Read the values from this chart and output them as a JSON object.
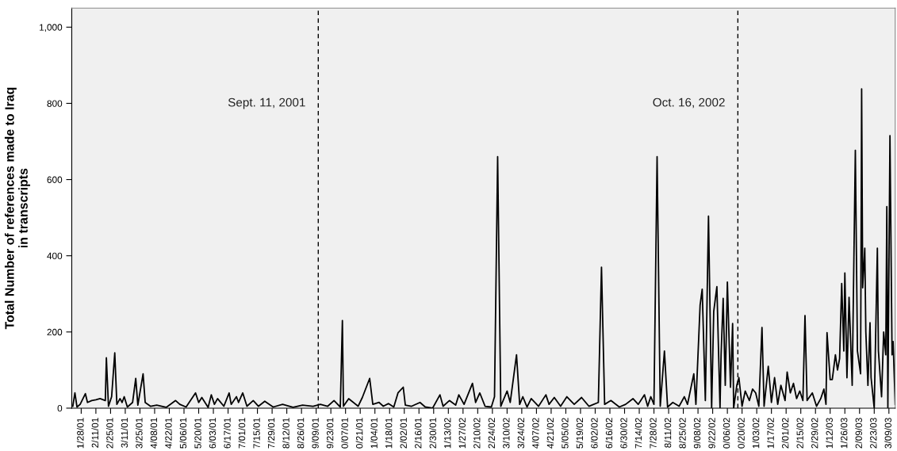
{
  "chart_data": {
    "type": "line",
    "ylabel": "Total Number of references made to Iraq\nin transcripts",
    "x": [
      "2001-01-20",
      "2001-01-22",
      "2001-01-24",
      "2001-01-27",
      "2001-02-01",
      "2001-02-03",
      "2001-02-07",
      "2001-02-11",
      "2001-02-15",
      "2001-02-20",
      "2001-02-21",
      "2001-02-23",
      "2001-02-26",
      "2001-03-01",
      "2001-03-03",
      "2001-03-06",
      "2001-03-08",
      "2001-03-10",
      "2001-03-13",
      "2001-03-18",
      "2001-03-21",
      "2001-03-23",
      "2001-03-28",
      "2001-03-30",
      "2001-04-04",
      "2001-04-10",
      "2001-04-19",
      "2001-04-28",
      "2001-05-02",
      "2001-05-08",
      "2001-05-17",
      "2001-05-20",
      "2001-05-23",
      "2001-05-29",
      "2001-06-01",
      "2001-06-04",
      "2001-06-07",
      "2001-06-13",
      "2001-06-18",
      "2001-06-20",
      "2001-06-25",
      "2001-06-27",
      "2001-07-01",
      "2001-07-05",
      "2001-07-11",
      "2001-07-16",
      "2001-07-22",
      "2001-07-30",
      "2001-08-08",
      "2001-08-18",
      "2001-08-27",
      "2001-09-06",
      "2001-09-13",
      "2001-09-20",
      "2001-09-26",
      "2001-10-02",
      "2001-10-04",
      "2001-10-05",
      "2001-10-10",
      "2001-10-19",
      "2001-10-23",
      "2001-10-30",
      "2001-11-02",
      "2001-11-08",
      "2001-11-12",
      "2001-11-17",
      "2001-11-22",
      "2001-11-26",
      "2001-12-01",
      "2001-12-03",
      "2001-12-09",
      "2001-12-17",
      "2001-12-22",
      "2001-12-29",
      "2002-01-05",
      "2002-01-08",
      "2002-01-14",
      "2002-01-20",
      "2002-01-23",
      "2002-01-28",
      "2002-02-05",
      "2002-02-08",
      "2002-02-12",
      "2002-02-17",
      "2002-02-23",
      "2002-02-26",
      "2002-03-01",
      "2002-03-04",
      "2002-03-10",
      "2002-03-13",
      "2002-03-19",
      "2002-03-22",
      "2002-03-25",
      "2002-03-29",
      "2002-04-02",
      "2002-04-09",
      "2002-04-16",
      "2002-04-19",
      "2002-04-24",
      "2002-04-30",
      "2002-05-06",
      "2002-05-13",
      "2002-05-20",
      "2002-05-27",
      "2002-06-05",
      "2002-06-08",
      "2002-06-11",
      "2002-06-17",
      "2002-06-25",
      "2002-07-01",
      "2002-07-08",
      "2002-07-13",
      "2002-07-19",
      "2002-07-22",
      "2002-07-25",
      "2002-07-28",
      "2002-07-31",
      "2002-08-03",
      "2002-08-07",
      "2002-08-10",
      "2002-08-15",
      "2002-08-21",
      "2002-08-26",
      "2002-08-29",
      "2002-09-04",
      "2002-09-06",
      "2002-09-10",
      "2002-09-12",
      "2002-09-15",
      "2002-09-18",
      "2002-09-21",
      "2002-09-23",
      "2002-09-26",
      "2002-09-29",
      "2002-09-30",
      "2002-10-02",
      "2002-10-04",
      "2002-10-06",
      "2002-10-09",
      "2002-10-11",
      "2002-10-12",
      "2002-10-15",
      "2002-10-17",
      "2002-10-20",
      "2002-10-23",
      "2002-10-27",
      "2002-10-30",
      "2002-11-02",
      "2002-11-05",
      "2002-11-08",
      "2002-11-10",
      "2002-11-14",
      "2002-11-17",
      "2002-11-20",
      "2002-11-23",
      "2002-11-26",
      "2002-11-30",
      "2002-12-02",
      "2002-12-05",
      "2002-12-08",
      "2002-12-11",
      "2002-12-14",
      "2002-12-17",
      "2002-12-19",
      "2002-12-21",
      "2002-12-26",
      "2002-12-30",
      "2003-01-03",
      "2003-01-06",
      "2003-01-08",
      "2003-01-09",
      "2003-01-12",
      "2003-01-14",
      "2003-01-17",
      "2003-01-19",
      "2003-01-21",
      "2003-01-23",
      "2003-01-25",
      "2003-01-26",
      "2003-01-28",
      "2003-01-30",
      "2003-02-02",
      "2003-02-05",
      "2003-02-07",
      "2003-02-10",
      "2003-02-11",
      "2003-02-12",
      "2003-02-14",
      "2003-02-15",
      "2003-02-17",
      "2003-02-19",
      "2003-02-20",
      "2003-02-23",
      "2003-02-24",
      "2003-02-26",
      "2003-02-27",
      "2003-03-02",
      "2003-03-04",
      "2003-03-06",
      "2003-03-07",
      "2003-03-08",
      "2003-03-10",
      "2003-03-12",
      "2003-03-13",
      "2003-03-15"
    ],
    "series": [
      {
        "color": "#000000",
        "values": [
          5,
          40,
          3,
          10,
          38,
          15,
          20,
          22,
          25,
          20,
          132,
          5,
          30,
          145,
          10,
          25,
          15,
          30,
          3,
          15,
          78,
          8,
          90,
          15,
          5,
          8,
          2,
          20,
          10,
          3,
          40,
          15,
          28,
          2,
          35,
          10,
          25,
          5,
          40,
          10,
          30,
          15,
          40,
          5,
          20,
          5,
          18,
          3,
          10,
          2,
          8,
          5,
          10,
          5,
          20,
          3,
          230,
          5,
          25,
          5,
          28,
          78,
          10,
          15,
          5,
          12,
          3,
          40,
          55,
          8,
          5,
          15,
          3,
          0,
          35,
          5,
          20,
          8,
          35,
          10,
          65,
          15,
          40,
          5,
          3,
          30,
          660,
          5,
          45,
          15,
          140,
          10,
          30,
          3,
          25,
          5,
          35,
          10,
          28,
          5,
          30,
          10,
          28,
          5,
          15,
          370,
          10,
          20,
          3,
          10,
          25,
          10,
          35,
          5,
          30,
          10,
          660,
          5,
          150,
          3,
          15,
          5,
          30,
          10,
          90,
          10,
          270,
          312,
          20,
          504,
          0,
          254,
          319,
          0,
          140,
          288,
          60,
          331,
          55,
          222,
          0,
          60,
          80,
          5,
          45,
          20,
          50,
          40,
          5,
          212,
          5,
          110,
          15,
          80,
          10,
          60,
          20,
          95,
          40,
          65,
          25,
          45,
          20,
          243,
          20,
          40,
          5,
          25,
          50,
          10,
          198,
          75,
          75,
          140,
          100,
          130,
          327,
          150,
          355,
          80,
          291,
          60,
          677,
          150,
          90,
          838,
          316,
          420,
          200,
          60,
          224,
          80,
          0,
          140,
          420,
          150,
          30,
          200,
          140,
          529,
          0,
          715,
          140,
          175,
          10
        ]
      }
    ],
    "xlim": [
      "2001-01-19",
      "2003-03-15"
    ],
    "xticks": [
      {
        "value": "2001-01-28",
        "label": "1/28/01"
      },
      {
        "value": "2001-02-11",
        "label": "2/11/01"
      },
      {
        "value": "2001-02-25",
        "label": "2/25/01"
      },
      {
        "value": "2001-03-11",
        "label": "3/11/01"
      },
      {
        "value": "2001-03-25",
        "label": "3/25/01"
      },
      {
        "value": "2001-04-08",
        "label": "4/08/01"
      },
      {
        "value": "2001-04-22",
        "label": "4/22/01"
      },
      {
        "value": "2001-05-06",
        "label": "5/06/01"
      },
      {
        "value": "2001-05-20",
        "label": "5/20/01"
      },
      {
        "value": "2001-06-03",
        "label": "6/03/01"
      },
      {
        "value": "2001-06-17",
        "label": "6/17/01"
      },
      {
        "value": "2001-07-01",
        "label": "7/01/01"
      },
      {
        "value": "2001-07-15",
        "label": "7/15/01"
      },
      {
        "value": "2001-07-29",
        "label": "7/29/01"
      },
      {
        "value": "2001-08-12",
        "label": "8/12/01"
      },
      {
        "value": "2001-08-26",
        "label": "8/26/01"
      },
      {
        "value": "2001-09-09",
        "label": "9/09/01"
      },
      {
        "value": "2001-09-23",
        "label": "9/23/01"
      },
      {
        "value": "2001-10-07",
        "label": "0/07/01"
      },
      {
        "value": "2001-10-21",
        "label": "0/21/01"
      },
      {
        "value": "2001-11-04",
        "label": "1/04/01"
      },
      {
        "value": "2001-11-18",
        "label": "1/18/01"
      },
      {
        "value": "2001-12-02",
        "label": "2/02/01"
      },
      {
        "value": "2001-12-16",
        "label": "2/16/01"
      },
      {
        "value": "2001-12-30",
        "label": "2/30/01"
      },
      {
        "value": "2002-01-13",
        "label": "1/13/02"
      },
      {
        "value": "2002-01-27",
        "label": "1/27/02"
      },
      {
        "value": "2002-02-10",
        "label": "2/10/02"
      },
      {
        "value": "2002-02-24",
        "label": "2/24/02"
      },
      {
        "value": "2002-03-10",
        "label": "3/10/02"
      },
      {
        "value": "2002-03-24",
        "label": "3/24/02"
      },
      {
        "value": "2002-04-07",
        "label": "4/07/02"
      },
      {
        "value": "2002-04-21",
        "label": "4/21/02"
      },
      {
        "value": "2002-05-05",
        "label": "5/05/02"
      },
      {
        "value": "2002-05-19",
        "label": "5/19/02"
      },
      {
        "value": "2002-06-02",
        "label": "6/02/02"
      },
      {
        "value": "2002-06-16",
        "label": "6/16/02"
      },
      {
        "value": "2002-06-30",
        "label": "6/30/02"
      },
      {
        "value": "2002-07-14",
        "label": "7/14/02"
      },
      {
        "value": "2002-07-28",
        "label": "7/28/02"
      },
      {
        "value": "2002-08-11",
        "label": "8/11/02"
      },
      {
        "value": "2002-08-25",
        "label": "8/25/02"
      },
      {
        "value": "2002-09-08",
        "label": "9/08/02"
      },
      {
        "value": "2002-09-22",
        "label": "9/22/02"
      },
      {
        "value": "2002-10-06",
        "label": "0/06/02"
      },
      {
        "value": "2002-10-20",
        "label": "0/20/02"
      },
      {
        "value": "2002-11-03",
        "label": "1/03/02"
      },
      {
        "value": "2002-11-17",
        "label": "1/17/02"
      },
      {
        "value": "2002-12-01",
        "label": "2/01/02"
      },
      {
        "value": "2002-12-15",
        "label": "2/15/02"
      },
      {
        "value": "2002-12-29",
        "label": "2/29/02"
      },
      {
        "value": "2003-01-12",
        "label": "1/12/03"
      },
      {
        "value": "2003-01-26",
        "label": "1/26/03"
      },
      {
        "value": "2003-02-09",
        "label": "2/09/03"
      },
      {
        "value": "2003-02-23",
        "label": "2/23/03"
      },
      {
        "value": "2003-03-09",
        "label": "3/09/03"
      }
    ],
    "ylim": [
      0,
      1050
    ],
    "yticks": [
      0,
      200,
      400,
      600,
      800,
      {
        "value": 1000,
        "label": "1,000"
      }
    ],
    "ref_lines": [
      {
        "axis": "x",
        "value": "2001-09-11",
        "label": "Sept. 11, 2001",
        "color": "#000000",
        "line_style": "dashed"
      },
      {
        "axis": "x",
        "value": "2002-10-16",
        "label": "Oct. 16, 2002",
        "color": "#000000",
        "line_style": "dashed"
      }
    ],
    "grid": false,
    "legend": false,
    "marker": "none",
    "line_style": "solid"
  }
}
